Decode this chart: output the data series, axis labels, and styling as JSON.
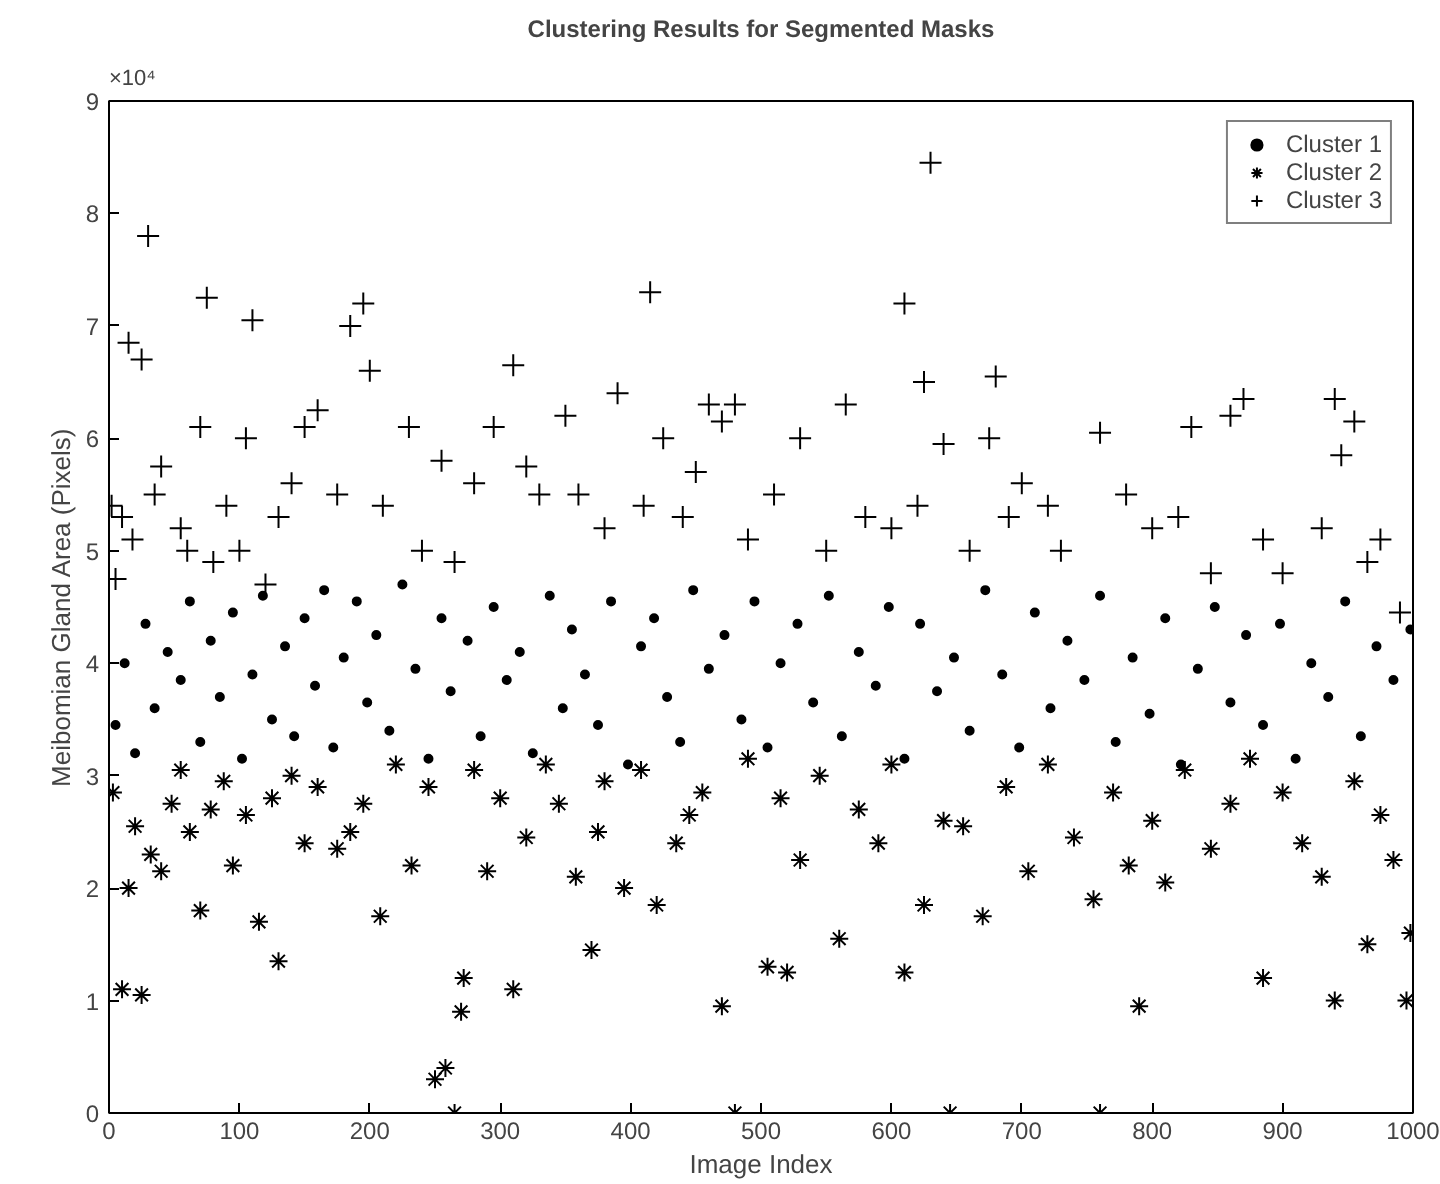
{
  "chart_data": {
    "type": "scatter",
    "title": "Clustering Results for Segmented Masks",
    "xlabel": "Image Index",
    "ylabel": "Meibomian Gland Area (Pixels)",
    "annotations": [
      "×10⁴"
    ],
    "xlim": [
      0,
      1000
    ],
    "xticks": [
      0,
      100,
      200,
      300,
      400,
      500,
      600,
      700,
      800,
      900,
      1000
    ],
    "ylim": [
      0,
      9
    ],
    "yticks": [
      0,
      1,
      2,
      3,
      4,
      5,
      6,
      7,
      8,
      9
    ],
    "grid": false,
    "legend": "top right",
    "series": [
      {
        "name": "Cluster 1",
        "color": "#000000",
        "marker": "circle",
        "x": [
          5,
          12,
          20,
          28,
          35,
          45,
          55,
          62,
          70,
          78,
          85,
          95,
          102,
          110,
          118,
          125,
          135,
          142,
          150,
          158,
          165,
          172,
          180,
          190,
          198,
          205,
          215,
          225,
          235,
          245,
          255,
          262,
          275,
          285,
          295,
          305,
          315,
          325,
          338,
          348,
          355,
          365,
          375,
          385,
          398,
          408,
          418,
          428,
          438,
          448,
          460,
          472,
          485,
          495,
          505,
          515,
          528,
          540,
          552,
          562,
          575,
          588,
          598,
          610,
          622,
          635,
          648,
          660,
          672,
          685,
          698,
          710,
          722,
          735,
          748,
          760,
          772,
          785,
          798,
          810,
          822,
          835,
          848,
          860,
          872,
          885,
          898,
          910,
          922,
          935,
          948,
          960,
          972,
          985,
          998
        ],
        "values": [
          3.45,
          4.0,
          3.2,
          4.35,
          3.6,
          4.1,
          3.85,
          4.55,
          3.3,
          4.2,
          3.7,
          4.45,
          3.15,
          3.9,
          4.6,
          3.5,
          4.15,
          3.35,
          4.4,
          3.8,
          4.65,
          3.25,
          4.05,
          4.55,
          3.65,
          4.25,
          3.4,
          4.7,
          3.95,
          3.15,
          4.4,
          3.75,
          4.2,
          3.35,
          4.5,
          3.85,
          4.1,
          3.2,
          4.6,
          3.6,
          4.3,
          3.9,
          3.45,
          4.55,
          3.1,
          4.15,
          4.4,
          3.7,
          3.3,
          4.65,
          3.95,
          4.25,
          3.5,
          4.55,
          3.25,
          4.0,
          4.35,
          3.65,
          4.6,
          3.35,
          4.1,
          3.8,
          4.5,
          3.15,
          4.35,
          3.75,
          4.05,
          3.4,
          4.65,
          3.9,
          3.25,
          4.45,
          3.6,
          4.2,
          3.85,
          4.6,
          3.3,
          4.05,
          3.55,
          4.4,
          3.1,
          3.95,
          4.5,
          3.65,
          4.25,
          3.45,
          4.35,
          3.15,
          4.0,
          3.7,
          4.55,
          3.35,
          4.15,
          3.85,
          4.3
        ]
      },
      {
        "name": "Cluster 2",
        "color": "#000000",
        "x": [
          3,
          10,
          15,
          20,
          25,
          32,
          40,
          48,
          55,
          62,
          70,
          78,
          88,
          95,
          105,
          115,
          125,
          130,
          140,
          150,
          160,
          175,
          185,
          195,
          208,
          220,
          232,
          245,
          250,
          258,
          265,
          270,
          272,
          280,
          290,
          300,
          310,
          320,
          335,
          345,
          358,
          370,
          375,
          380,
          395,
          408,
          420,
          435,
          445,
          455,
          470,
          480,
          490,
          505,
          515,
          520,
          530,
          545,
          560,
          575,
          590,
          600,
          610,
          625,
          640,
          645,
          655,
          670,
          688,
          705,
          720,
          740,
          755,
          760,
          770,
          782,
          790,
          800,
          810,
          825,
          845,
          860,
          875,
          885,
          900,
          915,
          930,
          940,
          955,
          965,
          975,
          985,
          995,
          998
        ],
        "values": [
          2.85,
          1.1,
          2.0,
          2.55,
          1.05,
          2.3,
          2.15,
          2.75,
          3.05,
          2.5,
          1.8,
          2.7,
          2.95,
          2.2,
          2.65,
          1.7,
          2.8,
          1.35,
          3.0,
          2.4,
          2.9,
          2.35,
          2.5,
          2.75,
          1.75,
          3.1,
          2.2,
          2.9,
          0.3,
          0.4,
          0,
          0.9,
          1.2,
          3.05,
          2.15,
          2.8,
          1.1,
          2.45,
          3.1,
          2.75,
          2.1,
          1.45,
          2.5,
          2.95,
          2.0,
          3.05,
          1.85,
          2.4,
          2.65,
          2.85,
          0.95,
          0,
          3.15,
          1.3,
          2.8,
          1.25,
          2.25,
          3.0,
          1.55,
          2.7,
          2.4,
          3.1,
          1.25,
          1.85,
          2.6,
          0,
          2.55,
          1.75,
          2.9,
          2.15,
          3.1,
          2.45,
          1.9,
          0,
          2.85,
          2.2,
          0.95,
          2.6,
          2.05,
          3.05,
          2.35,
          2.75,
          3.15,
          1.2,
          2.85,
          2.4,
          2.1,
          1.0,
          2.95,
          1.5,
          2.65,
          2.25,
          1.0,
          1.6
        ]
      },
      {
        "name": "Cluster 3",
        "color": "#000000",
        "marker": "cross",
        "x": [
          2,
          5,
          10,
          15,
          18,
          25,
          30,
          35,
          40,
          55,
          60,
          70,
          75,
          80,
          90,
          100,
          105,
          110,
          120,
          130,
          140,
          150,
          160,
          175,
          185,
          195,
          200,
          210,
          230,
          240,
          255,
          265,
          280,
          295,
          310,
          320,
          330,
          350,
          360,
          380,
          390,
          410,
          415,
          425,
          440,
          450,
          460,
          470,
          480,
          490,
          510,
          530,
          550,
          565,
          580,
          600,
          610,
          620,
          625,
          630,
          640,
          660,
          675,
          680,
          690,
          700,
          720,
          730,
          760,
          780,
          800,
          820,
          830,
          845,
          860,
          870,
          885,
          900,
          930,
          940,
          945,
          955,
          965,
          975,
          990
        ],
        "values": [
          5.4,
          4.75,
          5.3,
          6.85,
          5.1,
          6.7,
          7.8,
          5.5,
          5.75,
          5.2,
          5.0,
          6.1,
          7.25,
          4.9,
          5.4,
          5.0,
          6.0,
          7.05,
          4.7,
          5.3,
          5.6,
          6.1,
          6.25,
          5.5,
          7.0,
          7.2,
          6.6,
          5.4,
          6.1,
          5.0,
          5.8,
          4.9,
          5.6,
          6.1,
          6.65,
          5.75,
          5.5,
          6.2,
          5.5,
          5.2,
          6.4,
          5.4,
          7.3,
          6.0,
          5.3,
          5.7,
          6.3,
          6.15,
          6.3,
          5.1,
          5.5,
          6.0,
          5.0,
          6.3,
          5.3,
          5.2,
          7.2,
          5.4,
          6.5,
          8.45,
          5.95,
          5.0,
          6.0,
          6.55,
          5.3,
          5.6,
          5.4,
          5.0,
          6.05,
          5.5,
          5.2,
          5.3,
          6.1,
          4.8,
          6.2,
          6.35,
          5.1,
          4.8,
          5.2,
          6.35,
          5.85,
          6.15,
          4.9,
          5.1,
          4.45
        ]
      }
    ]
  }
}
